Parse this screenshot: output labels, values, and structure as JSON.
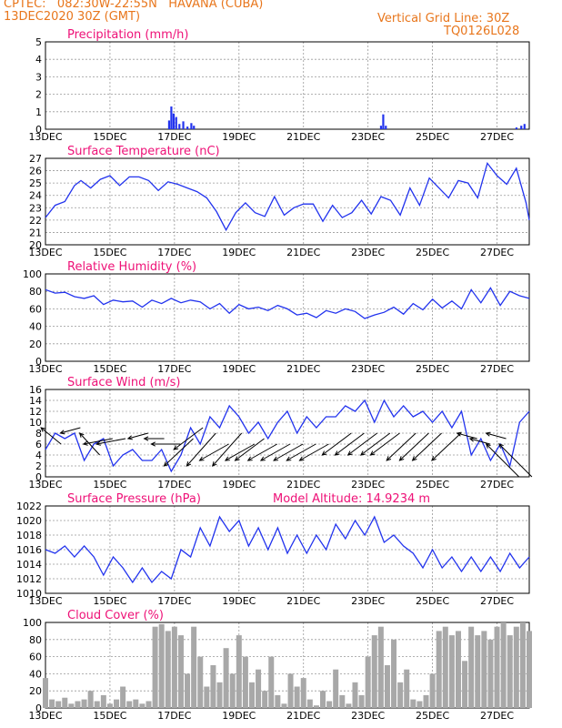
{
  "header": {
    "line1": "CPTEC:   082:30W-22:55N   HAVANA (CUBA)",
    "line2": "13DEC2020 30Z (GMT)",
    "grid_note": "Vertical Grid Line: 30Z",
    "code": "TQ0126L028"
  },
  "colors": {
    "series": "#2233ee",
    "title": "#ee1177",
    "header": "#e8761c",
    "cloud": "#a8a8a8",
    "wind": "#000000"
  },
  "chart_data": [
    {
      "type": "bar",
      "title": "Precipitation (mm/h)",
      "ylim": [
        0,
        5
      ],
      "yticks": [
        0,
        1,
        2,
        3,
        4,
        5
      ],
      "xlabels": [
        "13DEC",
        "15DEC",
        "17DEC",
        "19DEC",
        "21DEC",
        "23DEC",
        "25DEC",
        "27DEC"
      ],
      "x": [
        16.83,
        16.9,
        16.97,
        17.05,
        17.15,
        17.27,
        17.4,
        17.52,
        17.6,
        23.4,
        23.47,
        23.55,
        27.6,
        27.75,
        27.85
      ],
      "values": [
        0.5,
        1.3,
        0.9,
        0.7,
        0.3,
        0.45,
        0.15,
        0.35,
        0.2,
        0.2,
        0.85,
        0.2,
        0.1,
        0.2,
        0.3
      ]
    },
    {
      "type": "line",
      "title": "Surface Temperature (nC)",
      "ylim": [
        20,
        27
      ],
      "yticks": [
        20,
        21,
        22,
        23,
        24,
        25,
        26,
        27
      ],
      "xlabels": [
        "13DEC",
        "15DEC",
        "17DEC",
        "19DEC",
        "21DEC",
        "23DEC",
        "25DEC",
        "27DEC"
      ],
      "x": [
        13.0,
        13.3,
        13.6,
        13.9,
        14.1,
        14.4,
        14.7,
        15.0,
        15.3,
        15.6,
        15.9,
        16.2,
        16.5,
        16.8,
        17.1,
        17.4,
        17.7,
        18.0,
        18.3,
        18.6,
        18.9,
        19.2,
        19.5,
        19.8,
        20.1,
        20.4,
        20.7,
        21.0,
        21.3,
        21.6,
        21.9,
        22.2,
        22.5,
        22.8,
        23.1,
        23.4,
        23.7,
        24.0,
        24.3,
        24.6,
        24.9,
        25.2,
        25.5,
        25.8,
        26.1,
        26.4,
        26.7,
        27.0,
        27.3,
        27.6,
        27.9,
        28.0
      ],
      "values": [
        22.2,
        23.2,
        23.5,
        24.8,
        25.2,
        24.6,
        25.3,
        25.6,
        24.8,
        25.5,
        25.5,
        25.2,
        24.4,
        25.1,
        24.9,
        24.6,
        24.3,
        23.8,
        22.7,
        21.2,
        22.6,
        23.4,
        22.6,
        22.3,
        23.9,
        22.4,
        23.0,
        23.3,
        23.3,
        21.9,
        23.2,
        22.2,
        22.6,
        23.6,
        22.5,
        23.9,
        23.6,
        22.4,
        24.6,
        23.2,
        25.4,
        24.6,
        23.8,
        25.2,
        25.0,
        23.8,
        26.6,
        25.6,
        24.9,
        26.2,
        23.4,
        22.0
      ]
    },
    {
      "type": "line",
      "title": "Relative Humidity (%)",
      "ylim": [
        0,
        100
      ],
      "yticks": [
        0,
        20,
        40,
        60,
        80,
        100
      ],
      "xlabels": [
        "13DEC",
        "15DEC",
        "17DEC",
        "19DEC",
        "21DEC",
        "23DEC",
        "25DEC",
        "27DEC"
      ],
      "x": [
        13.0,
        13.3,
        13.6,
        13.9,
        14.2,
        14.5,
        14.8,
        15.1,
        15.4,
        15.7,
        16.0,
        16.3,
        16.6,
        16.9,
        17.2,
        17.5,
        17.8,
        18.1,
        18.4,
        18.7,
        19.0,
        19.3,
        19.6,
        19.9,
        20.2,
        20.5,
        20.8,
        21.1,
        21.4,
        21.7,
        22.0,
        22.3,
        22.6,
        22.9,
        23.2,
        23.5,
        23.8,
        24.1,
        24.4,
        24.7,
        25.0,
        25.3,
        25.6,
        25.9,
        26.2,
        26.5,
        26.8,
        27.1,
        27.4,
        27.7,
        28.0
      ],
      "values": [
        82,
        78,
        79,
        74,
        72,
        75,
        65,
        70,
        68,
        69,
        62,
        70,
        66,
        72,
        67,
        70,
        68,
        60,
        66,
        55,
        65,
        60,
        62,
        58,
        64,
        60,
        53,
        55,
        50,
        58,
        55,
        60,
        57,
        49,
        53,
        56,
        62,
        54,
        66,
        59,
        71,
        61,
        69,
        60,
        82,
        67,
        84,
        64,
        80,
        75,
        72
      ]
    },
    {
      "type": "line",
      "title": "Surface Wind (m/s)",
      "ylim": [
        0,
        16
      ],
      "yticks": [
        0,
        2,
        4,
        6,
        8,
        10,
        12,
        14,
        16
      ],
      "xlabels": [
        "13DEC",
        "15DEC",
        "17DEC",
        "19DEC",
        "21DEC",
        "23DEC",
        "25DEC",
        "27DEC"
      ],
      "x": [
        13.0,
        13.3,
        13.6,
        13.9,
        14.2,
        14.5,
        14.8,
        15.1,
        15.4,
        15.7,
        16.0,
        16.3,
        16.6,
        16.9,
        17.2,
        17.5,
        17.8,
        18.1,
        18.4,
        18.7,
        19.0,
        19.3,
        19.6,
        19.9,
        20.2,
        20.5,
        20.8,
        21.1,
        21.4,
        21.7,
        22.0,
        22.3,
        22.6,
        22.9,
        23.2,
        23.5,
        23.8,
        24.1,
        24.4,
        24.7,
        25.0,
        25.3,
        25.6,
        25.9,
        26.2,
        26.5,
        26.8,
        27.1,
        27.4,
        27.7,
        28.0
      ],
      "values": [
        5,
        8,
        7,
        8,
        3,
        6,
        7,
        2,
        4,
        5,
        3,
        3,
        5,
        1,
        4,
        9,
        6,
        11,
        9,
        13,
        11,
        8,
        10,
        7,
        10,
        12,
        8,
        11,
        9,
        11,
        11,
        13,
        12,
        14,
        10,
        14,
        11,
        13,
        11,
        12,
        10,
        12,
        9,
        12,
        4,
        7,
        3,
        6,
        2,
        10,
        12
      ],
      "arrows": [
        [
          13.2,
          9,
          6
        ],
        [
          13.8,
          8,
          9
        ],
        [
          14.4,
          8,
          4
        ],
        [
          14.8,
          6,
          7
        ],
        [
          15.2,
          6,
          7
        ],
        [
          15.9,
          7,
          8
        ],
        [
          16.4,
          7,
          7
        ],
        [
          16.9,
          6,
          6
        ],
        [
          17.3,
          2,
          7
        ],
        [
          17.6,
          5,
          9
        ],
        [
          18.0,
          2,
          8
        ],
        [
          18.4,
          3,
          6
        ],
        [
          18.8,
          2,
          8
        ],
        [
          19.2,
          3,
          6
        ],
        [
          19.5,
          3,
          7
        ],
        [
          19.9,
          3,
          6
        ],
        [
          20.3,
          3,
          6
        ],
        [
          20.7,
          3,
          6
        ],
        [
          21.1,
          3,
          6
        ],
        [
          21.5,
          3,
          6
        ],
        [
          22.2,
          4,
          8
        ],
        [
          22.6,
          4,
          8
        ],
        [
          23.0,
          4,
          8
        ],
        [
          23.4,
          4,
          8
        ],
        [
          23.7,
          4,
          8
        ],
        [
          24.2,
          3,
          8
        ],
        [
          24.6,
          3,
          8
        ],
        [
          25.0,
          3,
          8
        ],
        [
          25.6,
          3,
          8
        ],
        [
          26.1,
          8,
          7
        ],
        [
          26.5,
          7,
          6
        ],
        [
          27.0,
          8,
          7
        ],
        [
          27.4,
          6,
          0
        ],
        [
          27.8,
          6,
          0
        ]
      ]
    },
    {
      "type": "line",
      "title": "Surface Pressure (hPa)",
      "annotation": "Model Altitude: 14.9234  m",
      "ylim": [
        1010,
        1022
      ],
      "yticks": [
        1010,
        1012,
        1014,
        1016,
        1018,
        1020,
        1022
      ],
      "xlabels": [
        "13DEC",
        "15DEC",
        "17DEC",
        "19DEC",
        "21DEC",
        "23DEC",
        "25DEC",
        "27DEC"
      ],
      "x": [
        13.0,
        13.3,
        13.6,
        13.9,
        14.2,
        14.5,
        14.8,
        15.1,
        15.4,
        15.7,
        16.0,
        16.3,
        16.6,
        16.9,
        17.2,
        17.5,
        17.8,
        18.1,
        18.4,
        18.7,
        19.0,
        19.3,
        19.6,
        19.9,
        20.2,
        20.5,
        20.8,
        21.1,
        21.4,
        21.7,
        22.0,
        22.3,
        22.6,
        22.9,
        23.2,
        23.5,
        23.8,
        24.1,
        24.4,
        24.7,
        25.0,
        25.3,
        25.6,
        25.9,
        26.2,
        26.5,
        26.8,
        27.1,
        27.4,
        27.7,
        28.0
      ],
      "values": [
        1016,
        1015.5,
        1016.5,
        1015,
        1016.5,
        1015,
        1012.5,
        1015,
        1013.5,
        1011.5,
        1013.5,
        1011.5,
        1013,
        1012,
        1016,
        1015,
        1019,
        1016.5,
        1020.5,
        1018.5,
        1020,
        1016.5,
        1019,
        1016,
        1019,
        1015.5,
        1018,
        1015.5,
        1018,
        1016,
        1019.5,
        1017.5,
        1020,
        1018,
        1020.5,
        1017,
        1018,
        1016.5,
        1015.5,
        1013.5,
        1016,
        1013.5,
        1015,
        1013,
        1015,
        1013,
        1015,
        1013,
        1015.5,
        1013.5,
        1015
      ]
    },
    {
      "type": "area",
      "title": "Cloud Cover (%)",
      "ylim": [
        0,
        100
      ],
      "yticks": [
        0,
        20,
        40,
        60,
        80,
        100
      ],
      "xlabels": [
        "13DEC",
        "15DEC",
        "17DEC",
        "19DEC",
        "21DEC",
        "23DEC",
        "25DEC",
        "27DEC"
      ],
      "x": [
        13.0,
        13.2,
        13.4,
        13.6,
        13.8,
        14.0,
        14.2,
        14.4,
        14.6,
        14.8,
        15.0,
        15.2,
        15.4,
        15.6,
        15.8,
        16.0,
        16.2,
        16.4,
        16.6,
        16.8,
        17.0,
        17.2,
        17.4,
        17.6,
        17.8,
        18.0,
        18.2,
        18.4,
        18.6,
        18.8,
        19.0,
        19.2,
        19.4,
        19.6,
        19.8,
        20.0,
        20.2,
        20.4,
        20.6,
        20.8,
        21.0,
        21.2,
        21.4,
        21.6,
        21.8,
        22.0,
        22.2,
        22.4,
        22.6,
        22.8,
        23.0,
        23.2,
        23.4,
        23.6,
        23.8,
        24.0,
        24.2,
        24.4,
        24.6,
        24.8,
        25.0,
        25.2,
        25.4,
        25.6,
        25.8,
        26.0,
        26.2,
        26.4,
        26.6,
        26.8,
        27.0,
        27.2,
        27.4,
        27.6,
        27.8,
        28.0
      ],
      "values": [
        35,
        10,
        8,
        12,
        5,
        8,
        10,
        20,
        8,
        15,
        5,
        10,
        25,
        8,
        10,
        5,
        8,
        95,
        98,
        90,
        95,
        85,
        40,
        95,
        60,
        25,
        50,
        30,
        70,
        40,
        85,
        60,
        30,
        45,
        20,
        60,
        15,
        5,
        40,
        25,
        35,
        10,
        3,
        20,
        8,
        45,
        15,
        5,
        30,
        15,
        60,
        85,
        95,
        50,
        80,
        30,
        45,
        10,
        8,
        15,
        40,
        90,
        95,
        85,
        90,
        55,
        95,
        85,
        90,
        80,
        95,
        100,
        85,
        95,
        100,
        90
      ]
    }
  ]
}
